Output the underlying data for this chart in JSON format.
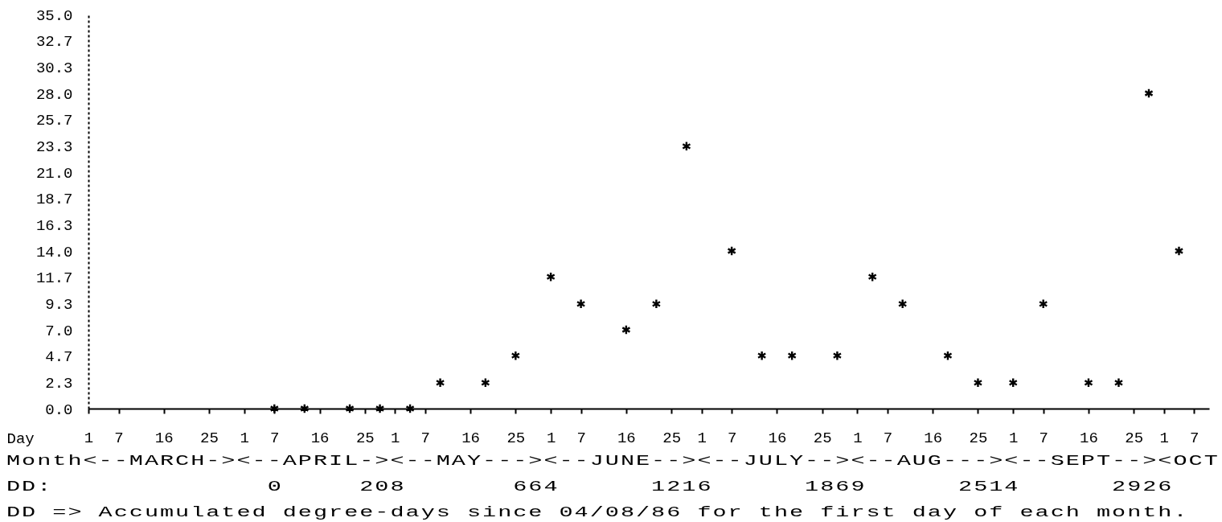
{
  "chart_data": {
    "type": "scatter",
    "xlabel": "Day",
    "x": [
      "--04-07",
      "--04-13",
      "--04-22",
      "--04-28",
      "--05-04",
      "--05-10",
      "--05-19",
      "--05-25",
      "--06-01",
      "--06-07",
      "--06-16",
      "--06-22",
      "--06-28",
      "--07-07",
      "--07-13",
      "--07-19",
      "--07-28",
      "--08-04",
      "--08-10",
      "--08-19",
      "--08-25",
      "--09-01",
      "--09-07",
      "--09-16",
      "--09-22",
      "--09-28",
      "--10-04"
    ],
    "values": [
      0,
      0,
      0,
      0,
      0,
      2.3,
      2.3,
      4.7,
      11.7,
      9.3,
      7.0,
      9.3,
      23.3,
      14.0,
      4.7,
      4.7,
      4.7,
      11.7,
      9.3,
      4.7,
      2.3,
      2.3,
      9.3,
      2.3,
      2.3,
      28.0,
      14.0
    ],
    "color": "#000000",
    "marker": "cross",
    "grid": false,
    "xlim": [
      "--03-01",
      "--10-10"
    ],
    "xticks": [
      {
        "value": "--03-01",
        "label": "1"
      },
      {
        "value": "--03-07",
        "label": "7"
      },
      {
        "value": "--03-16",
        "label": "16"
      },
      {
        "value": "--03-25",
        "label": "25"
      },
      {
        "value": "--04-01",
        "label": "1"
      },
      {
        "value": "--04-07",
        "label": "7"
      },
      {
        "value": "--04-16",
        "label": "16"
      },
      {
        "value": "--04-25",
        "label": "25"
      },
      {
        "value": "--05-01",
        "label": "1"
      },
      {
        "value": "--05-07",
        "label": "7"
      },
      {
        "value": "--05-16",
        "label": "16"
      },
      {
        "value": "--05-25",
        "label": "25"
      },
      {
        "value": "--06-01",
        "label": "1"
      },
      {
        "value": "--06-07",
        "label": "7"
      },
      {
        "value": "--06-16",
        "label": "16"
      },
      {
        "value": "--06-25",
        "label": "25"
      },
      {
        "value": "--07-01",
        "label": "1"
      },
      {
        "value": "--07-07",
        "label": "7"
      },
      {
        "value": "--07-16",
        "label": "16"
      },
      {
        "value": "--07-25",
        "label": "25"
      },
      {
        "value": "--08-01",
        "label": "1"
      },
      {
        "value": "--08-07",
        "label": "7"
      },
      {
        "value": "--08-16",
        "label": "16"
      },
      {
        "value": "--08-25",
        "label": "25"
      },
      {
        "value": "--09-01",
        "label": "1"
      },
      {
        "value": "--09-07",
        "label": "7"
      },
      {
        "value": "--09-16",
        "label": "16"
      },
      {
        "value": "--09-25",
        "label": "25"
      },
      {
        "value": "--10-01",
        "label": "1"
      },
      {
        "value": "--10-07",
        "label": "7"
      }
    ],
    "ylim": [
      0,
      35
    ],
    "yticks": [
      {
        "value": 0,
        "label": "0.0"
      },
      2.3,
      4.7,
      {
        "value": 7,
        "label": "7.0"
      },
      9.3,
      11.7,
      {
        "value": 14,
        "label": "14.0"
      },
      16.3,
      18.7,
      {
        "value": 21,
        "label": "21.0"
      },
      23.3,
      25.7,
      {
        "value": 28,
        "label": "28.0"
      },
      30.3,
      32.7,
      {
        "value": 35,
        "label": "35.0"
      }
    ],
    "annotations": [
      "Month<--MARCH-><--APRIL-><--MAY---><--JUNE--><--JULY--><--AUG---><--SEPT--><OCT",
      "DD:              0     208       664      1216      1869      2514      2926",
      "DD => Accumulated degree-days since 04/08/86 for the first day of each month."
    ]
  }
}
